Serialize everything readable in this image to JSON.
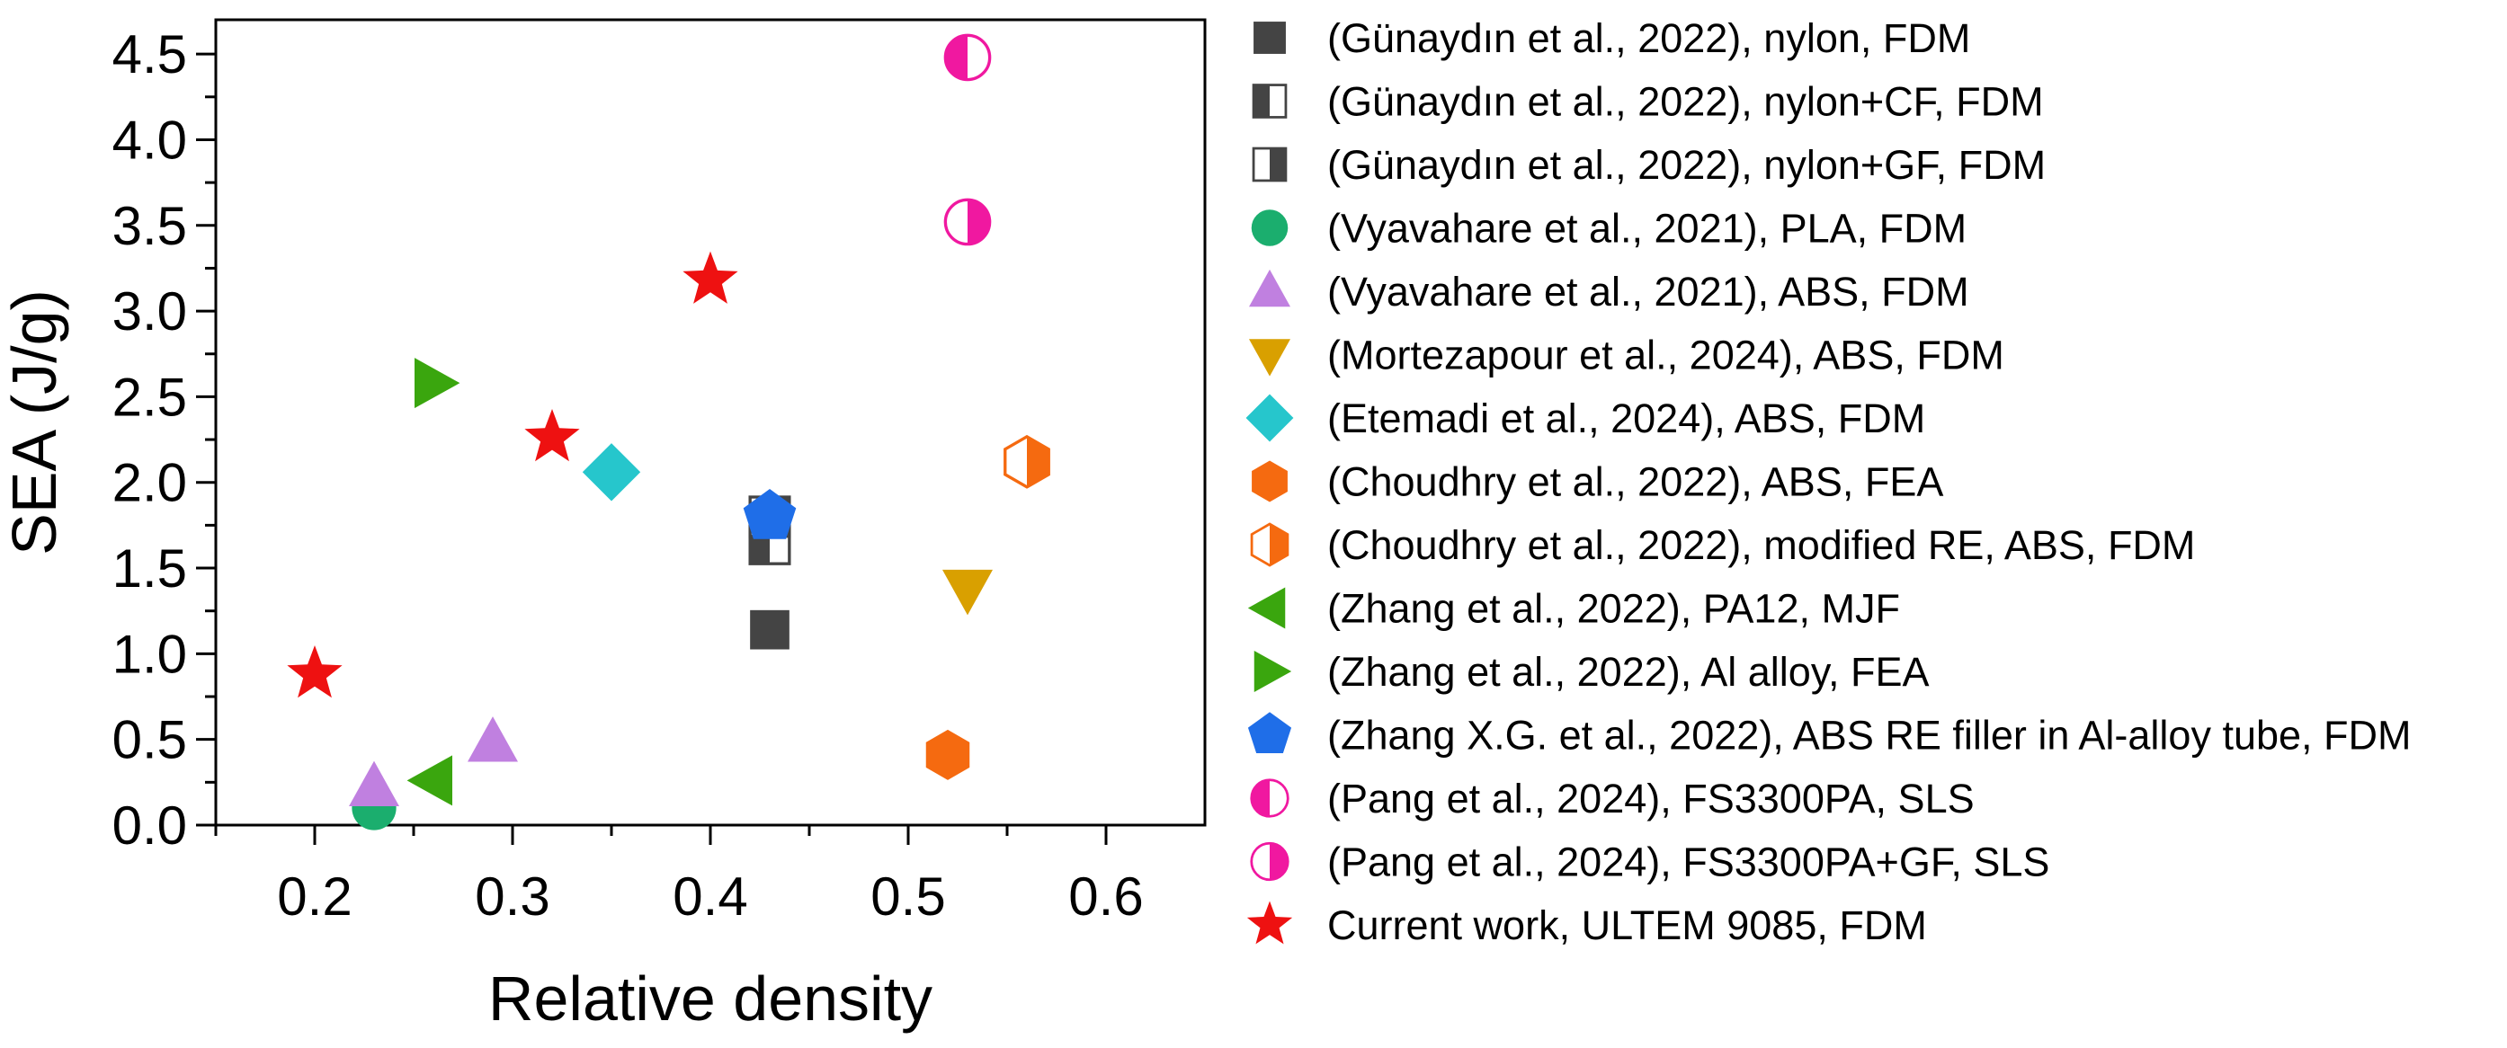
{
  "chart_data": {
    "type": "scatter",
    "title": "",
    "xlabel": "Relative density",
    "ylabel": "SEA (J/g)",
    "xlim": [
      0.15,
      0.65
    ],
    "ylim": [
      0.0,
      4.7
    ],
    "x_ticks": [
      0.2,
      0.3,
      0.4,
      0.5,
      0.6
    ],
    "x_tick_labels": [
      "0.2",
      "0.3",
      "0.4",
      "0.5",
      "0.6"
    ],
    "y_ticks": [
      0.0,
      0.5,
      1.0,
      1.5,
      2.0,
      2.5,
      3.0,
      3.5,
      4.0,
      4.5
    ],
    "y_tick_labels": [
      "0.0",
      "0.5",
      "1.0",
      "1.5",
      "2.0",
      "2.5",
      "3.0",
      "3.5",
      "4.0",
      "4.5"
    ],
    "grid": false,
    "legend_position": "right",
    "series": [
      {
        "name": "(Günaydın et al., 2022), nylon, FDM",
        "marker": "square-filled",
        "color": "#444444",
        "points": [
          [
            0.43,
            1.14
          ]
        ]
      },
      {
        "name": "(Günaydın et al., 2022), nylon+CF, FDM",
        "marker": "square-half-right-open",
        "color": "#444444",
        "points": [
          [
            0.43,
            1.64
          ]
        ]
      },
      {
        "name": "(Günaydın et al., 2022), nylon+GF, FDM",
        "marker": "square-half-left-open",
        "color": "#444444",
        "points": [
          [
            0.43,
            1.8
          ]
        ]
      },
      {
        "name": "(Vyavahare et al., 2021), PLA, FDM",
        "marker": "circle-filled",
        "color": "#1bae6e",
        "points": [
          [
            0.23,
            0.1
          ]
        ]
      },
      {
        "name": "(Vyavahare et al., 2021), ABS, FDM",
        "marker": "triangle-up",
        "color": "#c080e0",
        "points": [
          [
            0.23,
            0.22
          ],
          [
            0.29,
            0.48
          ]
        ]
      },
      {
        "name": "(Mortezapour et al., 2024), ABS, FDM",
        "marker": "triangle-down",
        "color": "#d9a000",
        "points": [
          [
            0.53,
            1.38
          ]
        ]
      },
      {
        "name": "(Etemadi et al., 2024), ABS, FDM",
        "marker": "diamond",
        "color": "#26c6cc",
        "points": [
          [
            0.35,
            2.06
          ]
        ]
      },
      {
        "name": "(Choudhry et al., 2022), ABS, FEA",
        "marker": "hexagon-filled",
        "color": "#f56a10",
        "points": [
          [
            0.52,
            0.41
          ]
        ]
      },
      {
        "name": "(Choudhry et al., 2022), modified RE, ABS, FDM",
        "marker": "hexagon-half-open",
        "color": "#f56a10",
        "points": [
          [
            0.56,
            2.12
          ]
        ]
      },
      {
        "name": "(Zhang et al., 2022), PA12, MJF",
        "marker": "triangle-left",
        "color": "#3aa60e",
        "points": [
          [
            0.26,
            0.26
          ]
        ]
      },
      {
        "name": "(Zhang et al., 2022), Al alloy, FEA",
        "marker": "triangle-right",
        "color": "#3aa60e",
        "points": [
          [
            0.26,
            2.58
          ]
        ]
      },
      {
        "name": "(Zhang X.G. et al., 2022), ABS RE filler in Al-alloy tube, FDM",
        "marker": "pentagon",
        "color": "#1f6ee8",
        "points": [
          [
            0.43,
            1.8
          ]
        ]
      },
      {
        "name": "(Pang et al., 2024), FS3300PA, SLS",
        "marker": "circle-half-left",
        "color": "#f018a0",
        "points": [
          [
            0.53,
            4.48
          ]
        ]
      },
      {
        "name": "(Pang et al., 2024), FS3300PA+GF, SLS",
        "marker": "circle-half-right",
        "color": "#f018a0",
        "points": [
          [
            0.53,
            3.52
          ]
        ]
      },
      {
        "name": "Current work, ULTEM 9085, FDM",
        "marker": "star",
        "color": "#ee1111",
        "points": [
          [
            0.2,
            0.88
          ],
          [
            0.32,
            2.26
          ],
          [
            0.4,
            3.18
          ]
        ]
      }
    ]
  }
}
